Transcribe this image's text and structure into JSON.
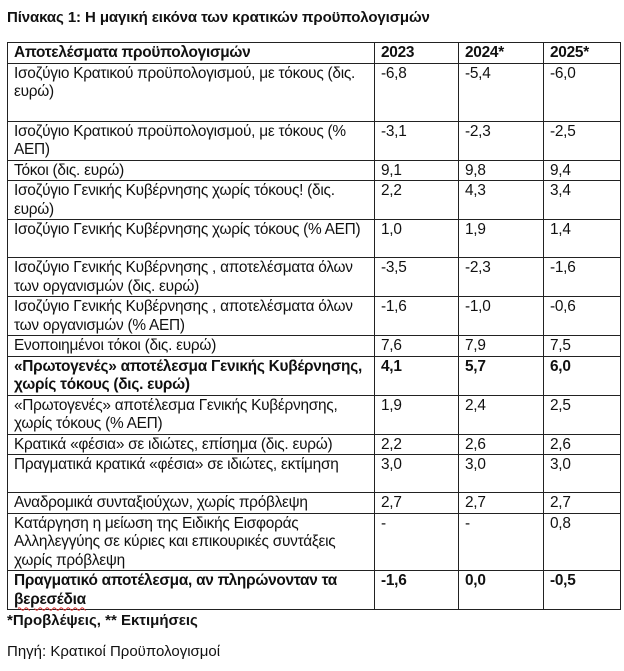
{
  "title": "Πίνακας 1: Η μαγική εικόνα των κρατικών προϋπολογισμών",
  "table": {
    "headers": [
      "Αποτελέσματα προϋπολογισμών",
      "2023",
      "2024*",
      "2025*"
    ],
    "rows": [
      {
        "label": "Ισοζύγιο Κρατικού προϋπολογισμού, με τόκους (δις. ευρώ)",
        "values": [
          "-6,8",
          "-5,4",
          "-6,0"
        ],
        "bold": false
      },
      {
        "label": "Ισοζύγιο Κρατικού προϋπολογισμού, με τόκους (% ΑΕΠ)",
        "values": [
          "-3,1",
          "-2,3",
          "-2,5"
        ],
        "bold": false
      },
      {
        "label": "Τόκοι (δις. ευρώ)",
        "values": [
          "9,1",
          "9,8",
          "9,4"
        ],
        "bold": false
      },
      {
        "label": "Ισοζύγιο Γενικής Κυβέρνησης χωρίς τόκους! (δις. ευρώ)",
        "values": [
          "2,2",
          "4,3",
          "3,4"
        ],
        "bold": false
      },
      {
        "label": "Ισοζύγιο Γενικής Κυβέρνησης χωρίς τόκους (% ΑΕΠ)",
        "values": [
          "1,0",
          "1,9",
          "1,4"
        ],
        "bold": false
      },
      {
        "label": "Ισοζύγιο Γενικής Κυβέρνησης , αποτελέσματα όλων των οργανισμών (δις. ευρώ)",
        "values": [
          "-3,5",
          "-2,3",
          "-1,6"
        ],
        "bold": false
      },
      {
        "label": "Ισοζύγιο Γενικής Κυβέρνησης , αποτελέσματα όλων των οργανισμών (% ΑΕΠ)",
        "values": [
          "-1,6",
          "-1,0",
          "-0,6"
        ],
        "bold": false
      },
      {
        "label": "Ενοποιημένοι τόκοι  (δις. ευρώ)",
        "values": [
          "7,6",
          "7,9",
          "7,5"
        ],
        "bold": false
      },
      {
        "label": "«Πρωτογενές» αποτέλεσμα Γενικής Κυβέρνησης, χωρίς τόκους (δις. ευρώ)",
        "values": [
          "4,1",
          "5,7",
          "6,0"
        ],
        "bold": true
      },
      {
        "label": "«Πρωτογενές» αποτέλεσμα Γενικής Κυβέρνησης, χωρίς τόκους (% ΑΕΠ)",
        "values": [
          "1,9",
          "2,4",
          "2,5"
        ],
        "bold": false
      },
      {
        "label": "Κρατικά «φέσια» σε ιδιώτες, επίσημα (δις. ευρώ)",
        "values": [
          "2,2",
          "2,6",
          "2,6"
        ],
        "bold": false
      },
      {
        "label": "Πραγματικά κρατικά «φέσια» σε ιδιώτες, εκτίμηση",
        "values": [
          "3,0",
          "3,0",
          "3,0"
        ],
        "bold": false
      },
      {
        "label": "Αναδρομικά συνταξιούχων, χωρίς πρόβλεψη",
        "values": [
          "2,7",
          "2,7",
          "2,7"
        ],
        "bold": false
      },
      {
        "label": "Κατάργηση η μείωση της  Ειδικής Εισφοράς Αλληλεγγύης σε κύριες και επικουρικές συντάξεις  χωρίς πρόβλεψη",
        "values": [
          "-",
          "-",
          "0,8"
        ],
        "bold": false
      },
      {
        "label_main": "Πραγματικό αποτέλεσμα, αν πληρώνονταν τα ",
        "label_underlined": "βερεσέδια",
        "values": [
          "-1,6",
          "0,0",
          "-0,5"
        ],
        "bold": true
      }
    ]
  },
  "footnote": "*Προβλέψεις, ** Εκτιμήσεις",
  "source": "Πηγή: Κρατικοί Προϋπολογισμοί"
}
